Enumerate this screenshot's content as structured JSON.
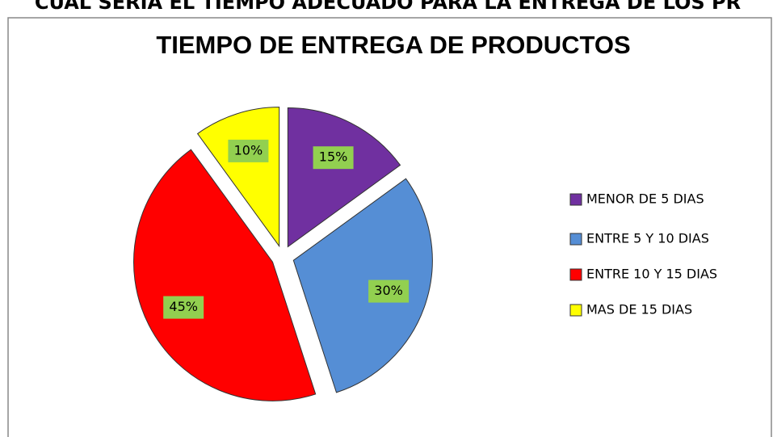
{
  "caption": "CUAL SERIA EL TIEMPO ADECUADO PARA LA ENTREGA DE LOS PR",
  "chart_data": {
    "type": "pie",
    "title": "TIEMPO DE ENTREGA DE PRODUCTOS",
    "categories": [
      "MENOR DE 5 DIAS",
      "ENTRE 5 Y 10 DIAS",
      "ENTRE 10 Y 15 DIAS",
      "MAS DE 15 DIAS"
    ],
    "values": [
      15,
      30,
      45,
      10
    ],
    "value_labels": [
      "15%",
      "30%",
      "45%",
      "10%"
    ],
    "colors": [
      "#7030a0",
      "#558ed5",
      "#ff0000",
      "#ffff00"
    ],
    "legend": "right"
  }
}
